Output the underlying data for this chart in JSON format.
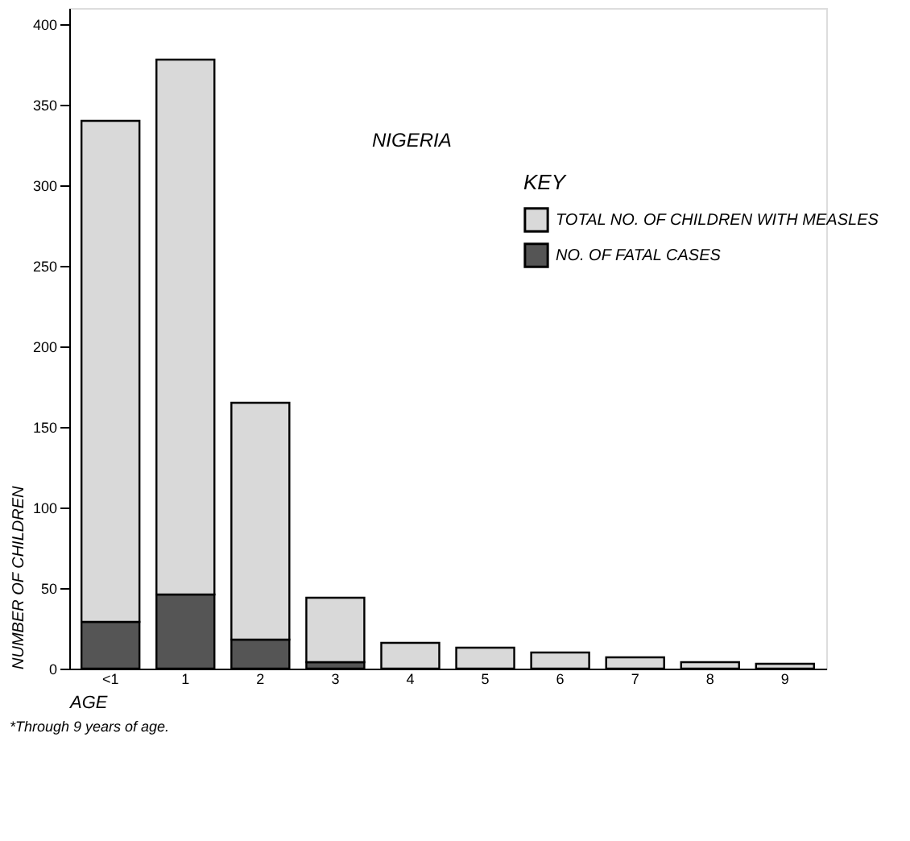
{
  "chart_data": {
    "type": "bar",
    "stacked": true,
    "xlabel": "AGE",
    "ylabel": "NUMBER OF CHILDREN",
    "legend_title": "KEY",
    "annotations": [
      "NIGERIA",
      "*Through 9 years of age."
    ],
    "categories": [
      "<1",
      "1",
      "2",
      "3",
      "4",
      "5",
      "6",
      "7",
      "8",
      "9"
    ],
    "series": [
      {
        "name": "NO. OF FATAL CASES",
        "color": "#555555",
        "values": [
          29,
          46,
          18,
          4,
          0,
          0,
          0,
          0,
          0,
          0
        ]
      },
      {
        "name": "TOTAL NO. OF CHILDREN WITH MEASLES",
        "color": "#d9d9d9",
        "values": [
          311,
          332,
          147,
          40,
          16,
          13,
          10,
          7,
          4,
          3
        ]
      }
    ],
    "ylim": [
      0,
      410
    ],
    "yticks": [
      0,
      50,
      100,
      150,
      200,
      250,
      300,
      350,
      400
    ],
    "grid": false,
    "legend": "top right"
  }
}
